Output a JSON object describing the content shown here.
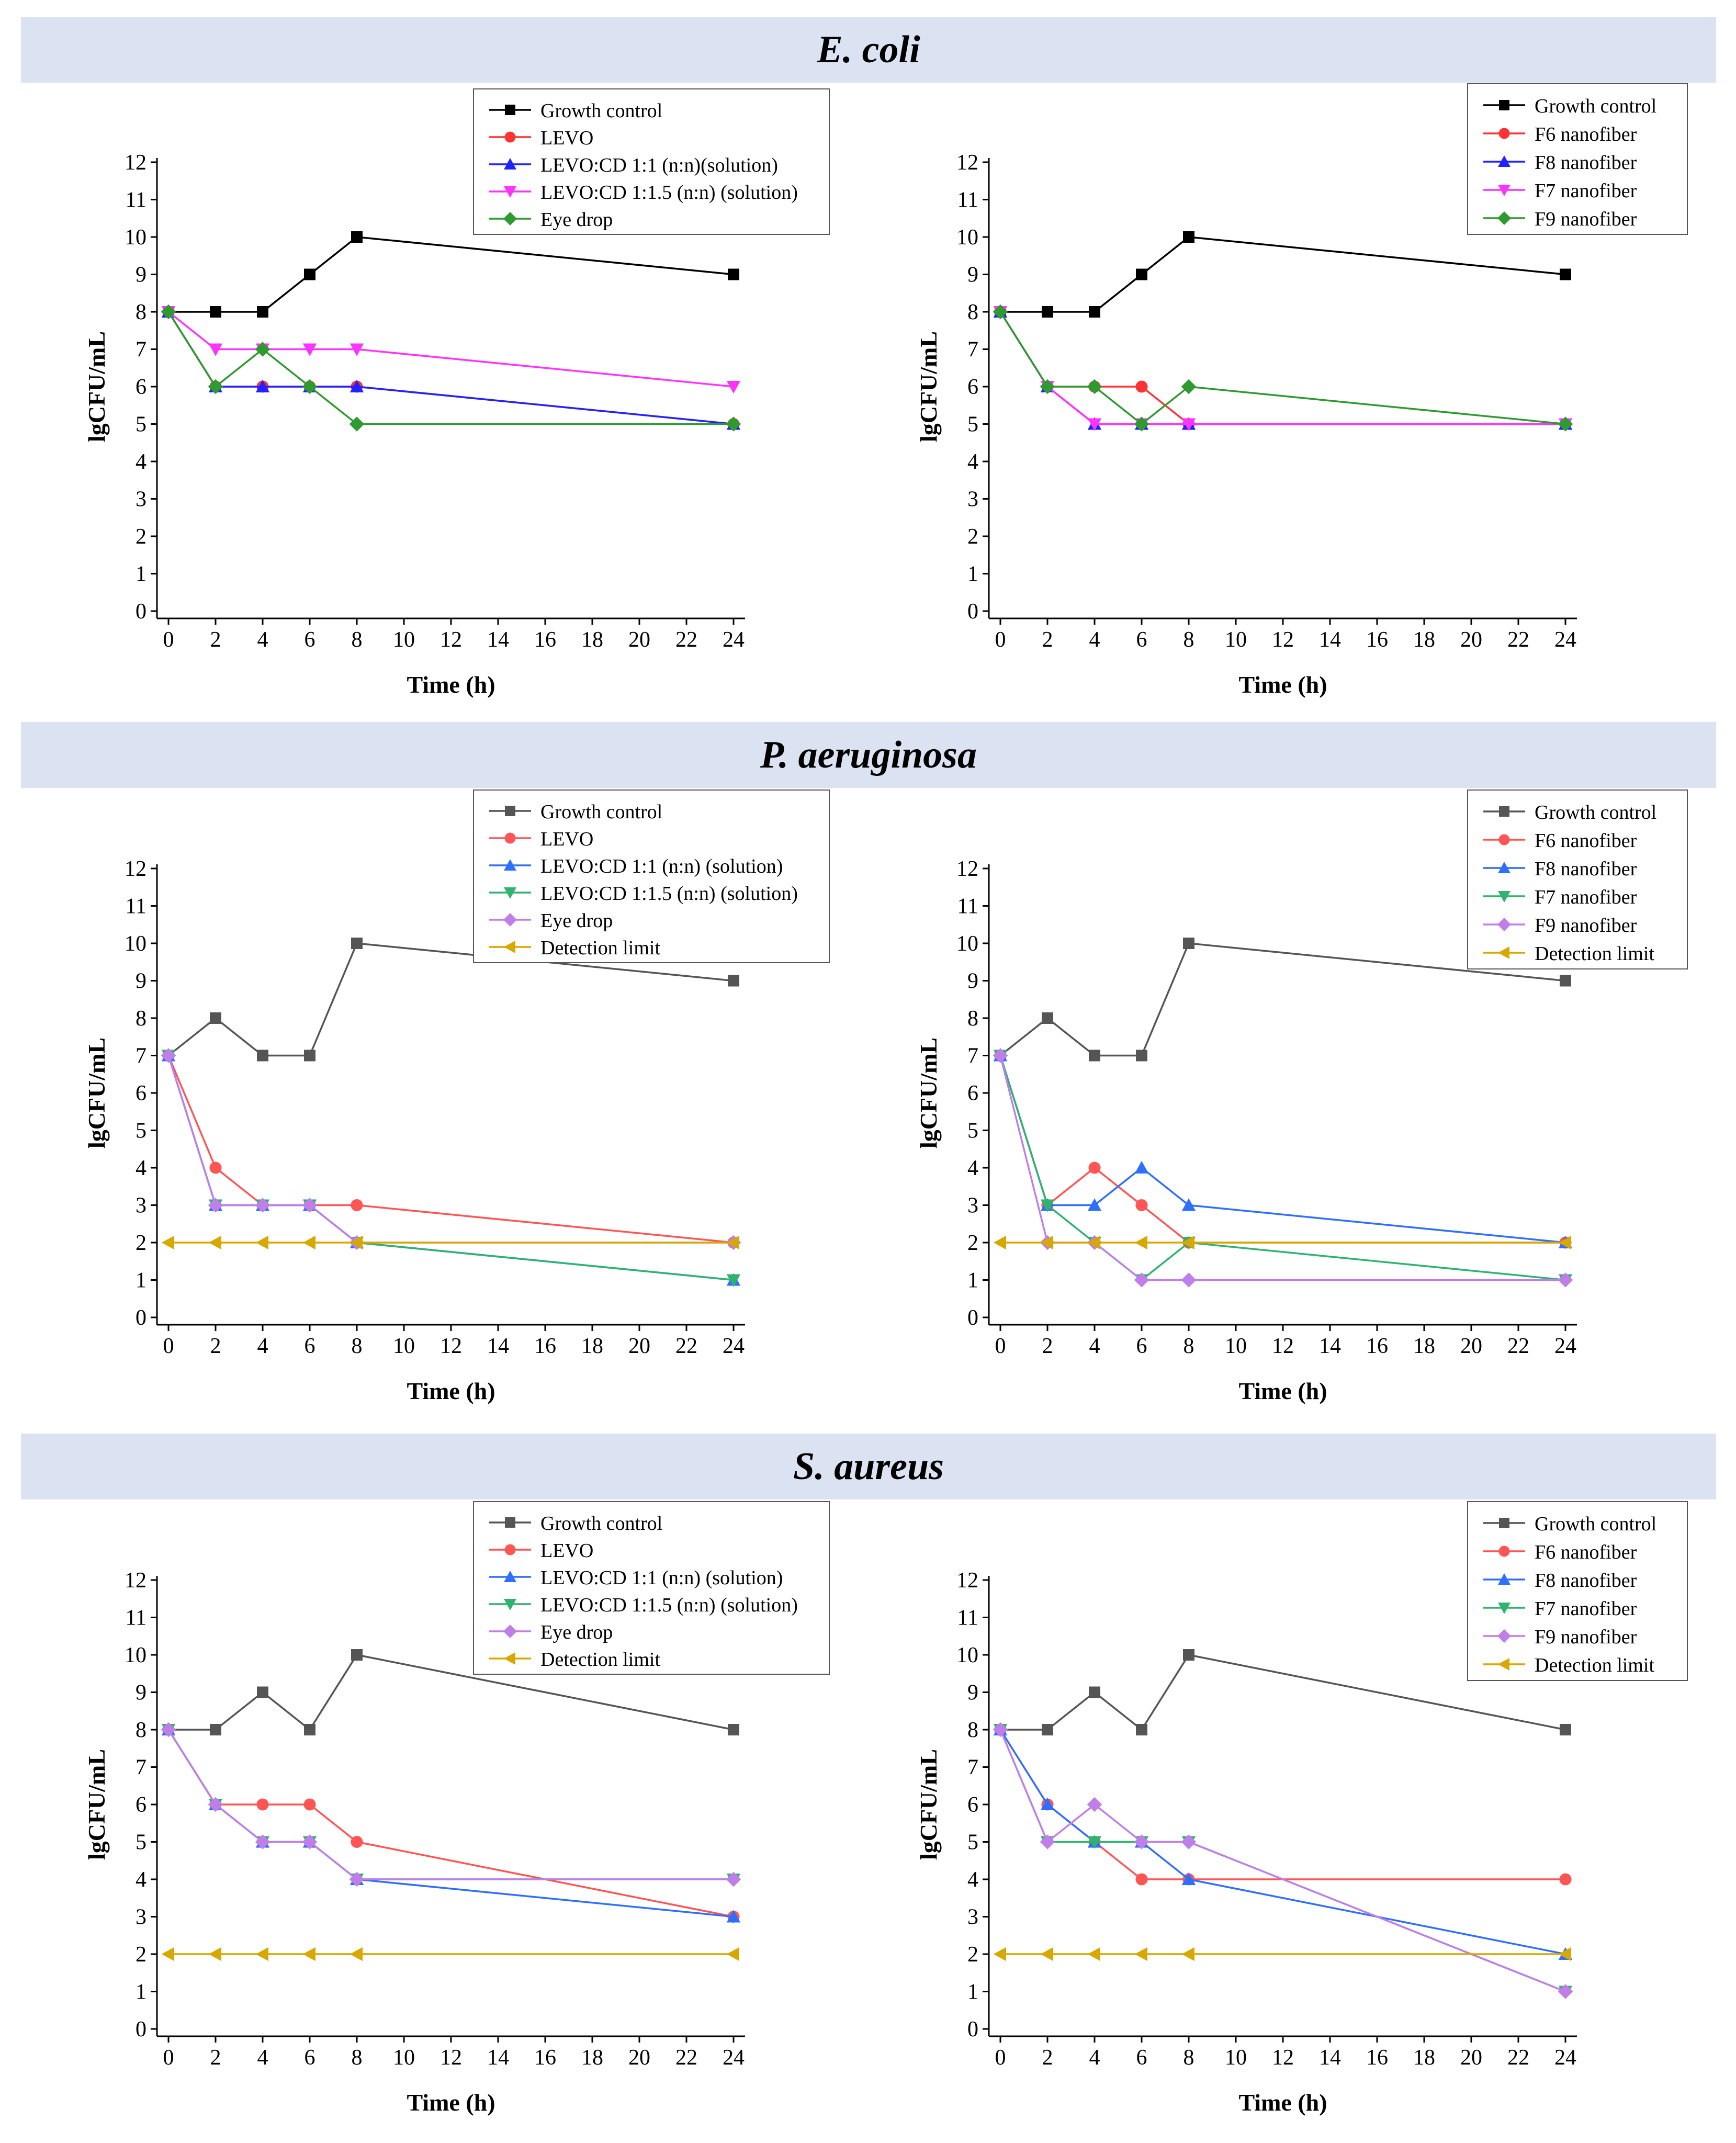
{
  "sections": [
    {
      "title": "E. coli"
    },
    {
      "title": "P. aeruginosa"
    },
    {
      "title": "S. aureus"
    }
  ],
  "colors": {
    "growth_control": "#000000",
    "growth_control_grey": "#555555",
    "red": "#ff3333",
    "blue": "#2f6fff",
    "magenta": "#ff33ff",
    "green": "#2f9a2f",
    "purple": "#c07fe8",
    "gold": "#d6a800"
  },
  "chart_data": [
    {
      "type": "line",
      "panel": "E. coli — solutions",
      "xlabel": "Time (h)",
      "ylabel": "lgCFU/mL",
      "xlim": [
        0,
        24
      ],
      "ylim": [
        0,
        12
      ],
      "xticks": [
        "0",
        "2",
        "4",
        "6",
        "8",
        "10",
        "12",
        "14",
        "16",
        "18",
        "20",
        "22",
        "24"
      ],
      "yticks": [
        "0",
        "1",
        "2",
        "3",
        "4",
        "5",
        "6",
        "7",
        "8",
        "9",
        "10",
        "11",
        "12"
      ],
      "x": [
        0,
        2,
        4,
        6,
        8,
        24
      ],
      "series": [
        {
          "name": "Growth control",
          "color": "#000000",
          "marker": "square",
          "values": [
            8,
            8,
            8,
            9,
            10,
            9
          ]
        },
        {
          "name": "LEVO",
          "color": "#ff3333",
          "marker": "circle",
          "values": [
            8,
            6,
            6,
            6,
            6,
            5
          ]
        },
        {
          "name": "LEVO:CD 1:1 (n:n)(solution)",
          "color": "#2222ff",
          "marker": "triangle-up",
          "values": [
            8,
            6,
            6,
            6,
            6,
            5
          ]
        },
        {
          "name": "LEVO:CD 1:1.5 (n:n) (solution)",
          "color": "#ff33ff",
          "marker": "triangle-down",
          "values": [
            8,
            7,
            7,
            7,
            7,
            6
          ]
        },
        {
          "name": "Eye drop",
          "color": "#2f9a2f",
          "marker": "diamond",
          "values": [
            8,
            6,
            7,
            6,
            5,
            5
          ]
        }
      ]
    },
    {
      "type": "line",
      "panel": "E. coli — nanofibers",
      "xlabel": "Time (h)",
      "ylabel": "lgCFU/mL",
      "xlim": [
        0,
        24
      ],
      "ylim": [
        0,
        12
      ],
      "xticks": [
        "0",
        "2",
        "4",
        "6",
        "8",
        "10",
        "12",
        "14",
        "16",
        "18",
        "20",
        "22",
        "24"
      ],
      "yticks": [
        "0",
        "1",
        "2",
        "3",
        "4",
        "5",
        "6",
        "7",
        "8",
        "9",
        "10",
        "11",
        "12"
      ],
      "x": [
        0,
        2,
        4,
        6,
        8,
        24
      ],
      "series": [
        {
          "name": "Growth control",
          "color": "#000000",
          "marker": "square",
          "values": [
            8,
            8,
            8,
            9,
            10,
            9
          ]
        },
        {
          "name": "F6 nanofiber",
          "color": "#ff3333",
          "marker": "circle",
          "values": [
            8,
            6,
            6,
            6,
            5,
            5
          ]
        },
        {
          "name": "F8 nanofiber",
          "color": "#2222ff",
          "marker": "triangle-up",
          "values": [
            8,
            6,
            5,
            5,
            5,
            5
          ]
        },
        {
          "name": "F7 nanofiber",
          "color": "#ff33ff",
          "marker": "triangle-down",
          "values": [
            8,
            6,
            5,
            5,
            5,
            5
          ]
        },
        {
          "name": "F9 nanofiber",
          "color": "#2f9a2f",
          "marker": "diamond",
          "values": [
            8,
            6,
            6,
            5,
            6,
            5
          ]
        }
      ]
    },
    {
      "type": "line",
      "panel": "P. aeruginosa — solutions",
      "xlabel": "Time (h)",
      "ylabel": "lgCFU/mL",
      "xlim": [
        0,
        24
      ],
      "ylim": [
        0,
        12
      ],
      "xticks": [
        "0",
        "2",
        "4",
        "6",
        "8",
        "10",
        "12",
        "14",
        "16",
        "18",
        "20",
        "22",
        "24"
      ],
      "yticks": [
        "0",
        "1",
        "2",
        "3",
        "4",
        "5",
        "6",
        "7",
        "8",
        "9",
        "10",
        "11",
        "12"
      ],
      "x": [
        0,
        2,
        4,
        6,
        8,
        24
      ],
      "series": [
        {
          "name": "Growth control",
          "color": "#555555",
          "marker": "square",
          "values": [
            7,
            8,
            7,
            7,
            10,
            9
          ]
        },
        {
          "name": "LEVO",
          "color": "#ff5555",
          "marker": "circle",
          "values": [
            7,
            4,
            3,
            3,
            3,
            2
          ]
        },
        {
          "name": "LEVO:CD 1:1 (n:n) (solution)",
          "color": "#2f6fff",
          "marker": "triangle-up",
          "values": [
            7,
            3,
            3,
            3,
            2,
            1
          ]
        },
        {
          "name": "LEVO:CD 1:1.5 (n:n) (solution)",
          "color": "#2fb36f",
          "marker": "triangle-down",
          "values": [
            7,
            3,
            3,
            3,
            2,
            1
          ]
        },
        {
          "name": "Eye drop",
          "color": "#c07fe8",
          "marker": "diamond",
          "values": [
            7,
            3,
            3,
            3,
            2,
            2
          ]
        },
        {
          "name": "Detection limit",
          "color": "#d6a800",
          "marker": "triangle-left",
          "values": [
            2,
            2,
            2,
            2,
            2,
            2
          ]
        }
      ]
    },
    {
      "type": "line",
      "panel": "P. aeruginosa — nanofibers",
      "xlabel": "Time (h)",
      "ylabel": "lgCFU/mL",
      "xlim": [
        0,
        24
      ],
      "ylim": [
        0,
        12
      ],
      "xticks": [
        "0",
        "2",
        "4",
        "6",
        "8",
        "10",
        "12",
        "14",
        "16",
        "18",
        "20",
        "22",
        "24"
      ],
      "yticks": [
        "0",
        "1",
        "2",
        "3",
        "4",
        "5",
        "6",
        "7",
        "8",
        "9",
        "10",
        "11",
        "12"
      ],
      "x": [
        0,
        2,
        4,
        6,
        8,
        24
      ],
      "series": [
        {
          "name": "Growth control",
          "color": "#555555",
          "marker": "square",
          "values": [
            7,
            8,
            7,
            7,
            10,
            9
          ]
        },
        {
          "name": "F6 nanofiber",
          "color": "#ff5555",
          "marker": "circle",
          "values": [
            7,
            3,
            4,
            3,
            2,
            2
          ]
        },
        {
          "name": "F8 nanofiber",
          "color": "#2f6fff",
          "marker": "triangle-up",
          "values": [
            7,
            3,
            3,
            4,
            3,
            2
          ]
        },
        {
          "name": "F7 nanofiber",
          "color": "#2fb36f",
          "marker": "triangle-down",
          "values": [
            7,
            3,
            2,
            1,
            2,
            1
          ]
        },
        {
          "name": "F9 nanofiber",
          "color": "#c07fe8",
          "marker": "diamond",
          "values": [
            7,
            2,
            2,
            1,
            1,
            1
          ]
        },
        {
          "name": "Detection limit",
          "color": "#d6a800",
          "marker": "triangle-left",
          "values": [
            2,
            2,
            2,
            2,
            2,
            2
          ]
        }
      ]
    },
    {
      "type": "line",
      "panel": "S. aureus — solutions",
      "xlabel": "Time (h)",
      "ylabel": "lgCFU/mL",
      "xlim": [
        0,
        24
      ],
      "ylim": [
        0,
        12
      ],
      "xticks": [
        "0",
        "2",
        "4",
        "6",
        "8",
        "10",
        "12",
        "14",
        "16",
        "18",
        "20",
        "22",
        "24"
      ],
      "yticks": [
        "0",
        "1",
        "2",
        "3",
        "4",
        "5",
        "6",
        "7",
        "8",
        "9",
        "10",
        "11",
        "12"
      ],
      "x": [
        0,
        2,
        4,
        6,
        8,
        24
      ],
      "series": [
        {
          "name": "Growth control",
          "color": "#555555",
          "marker": "square",
          "values": [
            8,
            8,
            9,
            8,
            10,
            8
          ]
        },
        {
          "name": "LEVO",
          "color": "#ff5555",
          "marker": "circle",
          "values": [
            8,
            6,
            6,
            6,
            5,
            3
          ]
        },
        {
          "name": "LEVO:CD 1:1 (n:n) (solution)",
          "color": "#2f6fff",
          "marker": "triangle-up",
          "values": [
            8,
            6,
            5,
            5,
            4,
            3
          ]
        },
        {
          "name": "LEVO:CD 1:1.5 (n:n) (solution)",
          "color": "#2fb36f",
          "marker": "triangle-down",
          "values": [
            8,
            6,
            5,
            5,
            4,
            4
          ]
        },
        {
          "name": "Eye drop",
          "color": "#c07fe8",
          "marker": "diamond",
          "values": [
            8,
            6,
            5,
            5,
            4,
            4
          ]
        },
        {
          "name": "Detection limit",
          "color": "#d6a800",
          "marker": "triangle-left",
          "values": [
            2,
            2,
            2,
            2,
            2,
            2
          ]
        }
      ]
    },
    {
      "type": "line",
      "panel": "S. aureus — nanofibers",
      "xlabel": "Time (h)",
      "ylabel": "lgCFU/mL",
      "xlim": [
        0,
        24
      ],
      "ylim": [
        0,
        12
      ],
      "xticks": [
        "0",
        "2",
        "4",
        "6",
        "8",
        "10",
        "12",
        "14",
        "16",
        "18",
        "20",
        "22",
        "24"
      ],
      "yticks": [
        "0",
        "1",
        "2",
        "3",
        "4",
        "5",
        "6",
        "7",
        "8",
        "9",
        "10",
        "11",
        "12"
      ],
      "x": [
        0,
        2,
        4,
        6,
        8,
        24
      ],
      "series": [
        {
          "name": "Growth control",
          "color": "#555555",
          "marker": "square",
          "values": [
            8,
            8,
            9,
            8,
            10,
            8
          ]
        },
        {
          "name": "F6 nanofiber",
          "color": "#ff5555",
          "marker": "circle",
          "values": [
            8,
            6,
            5,
            4,
            4,
            4
          ]
        },
        {
          "name": "F8 nanofiber",
          "color": "#2f6fff",
          "marker": "triangle-up",
          "values": [
            8,
            6,
            5,
            5,
            4,
            2
          ]
        },
        {
          "name": "F7 nanofiber",
          "color": "#2fb36f",
          "marker": "triangle-down",
          "values": [
            8,
            5,
            5,
            5,
            5,
            1
          ]
        },
        {
          "name": "F9 nanofiber",
          "color": "#c07fe8",
          "marker": "diamond",
          "values": [
            8,
            5,
            6,
            5,
            5,
            1
          ]
        },
        {
          "name": "Detection limit",
          "color": "#d6a800",
          "marker": "triangle-left",
          "values": [
            2,
            2,
            2,
            2,
            2,
            2
          ]
        }
      ]
    }
  ]
}
